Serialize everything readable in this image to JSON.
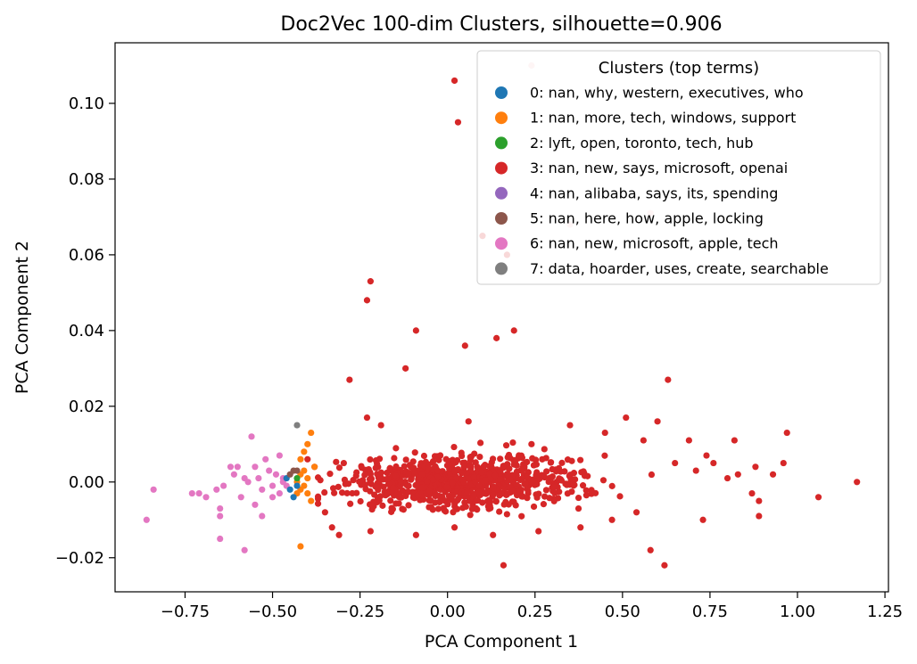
{
  "chart_data": {
    "type": "scatter",
    "title": "Doc2Vec 100-dim Clusters, silhouette=0.906",
    "xlabel": "PCA Component 1",
    "ylabel": "PCA Component 2",
    "xlim": [
      -0.95,
      1.26
    ],
    "ylim": [
      -0.029,
      0.116
    ],
    "xticks": [
      -0.75,
      -0.5,
      -0.25,
      0.0,
      0.25,
      0.5,
      0.75,
      1.0,
      1.25
    ],
    "xtick_labels": [
      "−0.75",
      "−0.50",
      "−0.25",
      "0.00",
      "0.25",
      "0.50",
      "0.75",
      "1.00",
      "1.25"
    ],
    "yticks": [
      -0.02,
      0.0,
      0.02,
      0.04,
      0.06,
      0.08,
      0.1
    ],
    "ytick_labels": [
      "−0.02",
      "0.00",
      "0.02",
      "0.04",
      "0.06",
      "0.08",
      "0.10"
    ],
    "grid": false,
    "legend": {
      "title": "Clusters (top terms)",
      "position": "top-right"
    },
    "series": [
      {
        "name": "0: nan, why, western, executives, who",
        "color": "#1f77b4",
        "points": [
          [
            -0.44,
            -0.004
          ],
          [
            -0.45,
            -0.002
          ],
          [
            -0.46,
            0.001
          ],
          [
            -0.43,
            -0.001
          ]
        ]
      },
      {
        "name": "1: nan, more, tech, windows, support",
        "color": "#ff7f0e",
        "points": [
          [
            -0.39,
            0.013
          ],
          [
            -0.4,
            0.01
          ],
          [
            -0.41,
            0.008
          ],
          [
            -0.42,
            0.006
          ],
          [
            -0.38,
            0.004
          ],
          [
            -0.41,
            0.003
          ],
          [
            -0.42,
            0.002
          ],
          [
            -0.4,
            0.001
          ],
          [
            -0.43,
            0.0
          ],
          [
            -0.41,
            -0.001
          ],
          [
            -0.42,
            -0.002
          ],
          [
            -0.4,
            -0.003
          ],
          [
            -0.39,
            -0.005
          ],
          [
            -0.43,
            -0.003
          ],
          [
            -0.42,
            -0.017
          ]
        ]
      },
      {
        "name": "2: lyft, open, toronto, tech, hub",
        "color": "#2ca02c",
        "points": [
          [
            -0.43,
            0.001
          ]
        ]
      },
      {
        "name": "3: nan, new, says, microsoft, openai",
        "color": "#d62728",
        "points": [
          [
            0.02,
            0.106
          ],
          [
            0.03,
            0.095
          ],
          [
            0.17,
            0.06
          ],
          [
            0.1,
            0.065
          ],
          [
            -0.22,
            0.053
          ],
          [
            -0.23,
            0.048
          ],
          [
            0.19,
            0.04
          ],
          [
            -0.09,
            0.04
          ],
          [
            0.14,
            0.038
          ],
          [
            0.05,
            0.036
          ],
          [
            -0.12,
            0.03
          ],
          [
            -0.28,
            0.027
          ],
          [
            0.63,
            0.027
          ],
          [
            1.17,
            0.0
          ],
          [
            1.06,
            -0.004
          ],
          [
            0.97,
            0.013
          ],
          [
            0.96,
            0.005
          ],
          [
            0.93,
            0.002
          ],
          [
            0.89,
            -0.005
          ],
          [
            0.89,
            -0.009
          ],
          [
            0.88,
            0.004
          ],
          [
            0.87,
            -0.003
          ],
          [
            0.82,
            0.011
          ],
          [
            0.8,
            0.001
          ],
          [
            0.83,
            0.002
          ],
          [
            0.74,
            0.007
          ],
          [
            0.73,
            -0.01
          ],
          [
            0.69,
            0.011
          ],
          [
            0.62,
            -0.022
          ],
          [
            0.58,
            -0.018
          ],
          [
            0.16,
            -0.022
          ],
          [
            0.6,
            0.016
          ],
          [
            0.51,
            0.017
          ],
          [
            0.35,
            0.015
          ],
          [
            0.06,
            0.016
          ],
          [
            -0.23,
            0.017
          ],
          [
            -0.19,
            0.015
          ],
          [
            0.65,
            0.005
          ],
          [
            0.71,
            0.003
          ],
          [
            0.76,
            0.005
          ],
          [
            0.56,
            0.011
          ],
          [
            0.45,
            0.013
          ],
          [
            0.24,
            0.01
          ],
          [
            -0.4,
            0.006
          ],
          [
            -0.38,
            0.004
          ],
          [
            -0.35,
            -0.008
          ],
          [
            -0.33,
            -0.012
          ],
          [
            -0.31,
            -0.014
          ],
          [
            -0.22,
            -0.013
          ],
          [
            -0.09,
            -0.014
          ],
          [
            0.02,
            -0.012
          ],
          [
            0.13,
            -0.014
          ],
          [
            0.26,
            -0.013
          ],
          [
            0.38,
            -0.012
          ],
          [
            0.47,
            -0.01
          ],
          [
            0.54,
            -0.008
          ]
        ],
        "cloud": {
          "center": [
            0.05,
            0.0
          ],
          "x_spread": 0.17,
          "y_spread": 0.0035,
          "count": 760
        }
      },
      {
        "name": "4: nan, alibaba, says, its, spending",
        "color": "#9467bd",
        "points": []
      },
      {
        "name": "5: nan, here, how, apple, locking",
        "color": "#8c564b",
        "points": [
          [
            -0.44,
            0.003
          ],
          [
            -0.45,
            0.002
          ],
          [
            -0.43,
            0.003
          ]
        ]
      },
      {
        "name": "6: nan, new, microsoft, apple, tech",
        "color": "#e377c2",
        "points": [
          [
            -0.84,
            -0.002
          ],
          [
            -0.86,
            -0.01
          ],
          [
            -0.73,
            -0.003
          ],
          [
            -0.71,
            -0.003
          ],
          [
            -0.69,
            -0.004
          ],
          [
            -0.66,
            -0.002
          ],
          [
            -0.64,
            -0.001
          ],
          [
            -0.62,
            0.004
          ],
          [
            -0.6,
            0.004
          ],
          [
            -0.58,
            0.001
          ],
          [
            -0.57,
            0.0
          ],
          [
            -0.56,
            0.012
          ],
          [
            -0.55,
            0.004
          ],
          [
            -0.54,
            0.001
          ],
          [
            -0.53,
            -0.002
          ],
          [
            -0.52,
            0.006
          ],
          [
            -0.51,
            0.003
          ],
          [
            -0.5,
            -0.001
          ],
          [
            -0.49,
            0.002
          ],
          [
            -0.48,
            0.007
          ],
          [
            -0.48,
            -0.003
          ],
          [
            -0.47,
            0.0
          ],
          [
            -0.46,
            -0.001
          ],
          [
            -0.55,
            -0.006
          ],
          [
            -0.53,
            -0.009
          ],
          [
            -0.65,
            -0.007
          ],
          [
            -0.65,
            -0.009
          ],
          [
            -0.65,
            -0.015
          ],
          [
            -0.58,
            -0.018
          ],
          [
            -0.61,
            0.002
          ],
          [
            -0.59,
            -0.004
          ],
          [
            -0.5,
            -0.004
          ],
          [
            -0.47,
            0.001
          ]
        ]
      },
      {
        "name": "7: data, hoarder, uses, create, searchable",
        "color": "#7f7f7f",
        "points": [
          [
            -0.43,
            0.015
          ]
        ]
      }
    ],
    "legend_ghost_points": [
      [
        0.24,
        0.11
      ],
      [
        0.35,
        0.068
      ],
      [
        0.58,
        0.071
      ]
    ]
  }
}
